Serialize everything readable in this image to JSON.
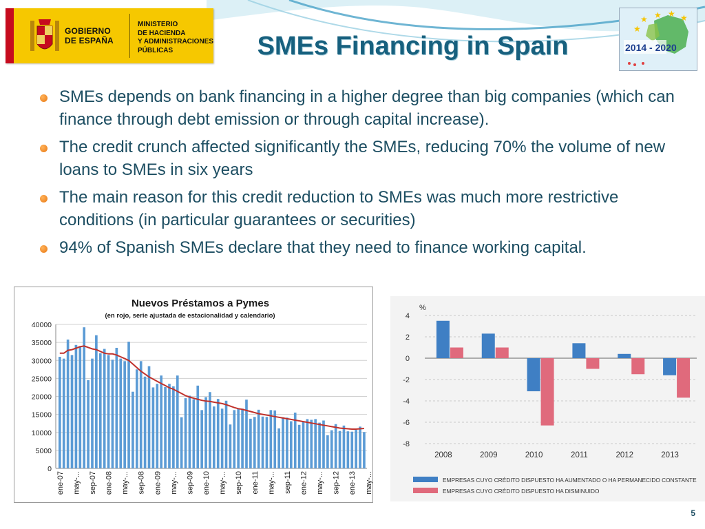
{
  "header": {
    "gov_line1": "GOBIERNO",
    "gov_line2": "DE ESPAÑA",
    "ministry_line1": "MINISTERIO",
    "ministry_line2": "DE HACIENDA",
    "ministry_line3": "Y ADMINISTRACIONES",
    "ministry_line4": "PÚBLICAS",
    "title": "SMEs Financing in Spain",
    "eu_logo_text": "2014 - 2020"
  },
  "bullets": [
    "SMEs depends on bank financing in a higher degree than big companies (which can finance through debt emission or through capital increase).",
    "The credit crunch affected significantly the SMEs, reducing 70% the volume of new loans to SMEs in six years",
    "The main reason for this credit reduction to SMEs was much more restrictive conditions (in particular guarantees or securities)",
    "94% of Spanish SMEs declare that they need to finance working capital."
  ],
  "footer": {
    "page_number": "5"
  },
  "colors": {
    "title": "#17607e",
    "text": "#1d4e62",
    "bullet": "#e87712",
    "bar_blue": "#5b9bd5",
    "line_red": "#c0312b",
    "bar2_blue": "#3f7fc4",
    "bar2_red": "#e06a7c"
  },
  "chart_data": [
    {
      "type": "bar",
      "title": "Nuevos Préstamos a Pymes",
      "subtitle": "(en rojo, serie ajustada de estacionalidad y calendario)",
      "ylim": [
        0,
        40000
      ],
      "yticks": [
        "40000",
        "35000",
        "30000",
        "25000",
        "20000",
        "15000",
        "10000",
        "5000",
        "0"
      ],
      "ytick_values": [
        40000,
        35000,
        30000,
        25000,
        20000,
        15000,
        10000,
        5000,
        0
      ],
      "xtick_labels": [
        "ene-07",
        "may-...",
        "sep-07",
        "ene-08",
        "may-...",
        "sep-08",
        "ene-09",
        "may-...",
        "sep-09",
        "ene-10",
        "may-...",
        "sep-10",
        "ene-11",
        "may-...",
        "sep-11",
        "ene-12",
        "may-...",
        "sep-12",
        "ene-13",
        "may-..."
      ],
      "grid": true,
      "values": [
        31000,
        30500,
        35800,
        31500,
        34300,
        34000,
        39200,
        24500,
        30500,
        37000,
        32000,
        33200,
        31500,
        30200,
        33500,
        30500,
        29800,
        35200,
        21300,
        27500,
        29800,
        25500,
        28400,
        22500,
        23500,
        25800,
        22600,
        23500,
        22800,
        25800,
        14200,
        19500,
        20200,
        19200,
        23000,
        16200,
        19800,
        21200,
        17200,
        19300,
        16600,
        18800,
        12200,
        16200,
        16600,
        16600,
        19100,
        13800,
        14300,
        16300,
        14400,
        14300,
        16200,
        16100,
        11100,
        14200,
        14100,
        13100,
        15500,
        12100,
        13000,
        13700,
        13500,
        13700,
        12700,
        13300,
        9200,
        10600,
        12300,
        10400,
        11900,
        10300,
        10200,
        10700,
        11600,
        10100
      ],
      "adjusted_series": [
        32000,
        32000,
        32800,
        33000,
        33400,
        33800,
        34000,
        33600,
        33200,
        33000,
        32500,
        32000,
        31800,
        31800,
        31500,
        31000,
        30500,
        30000,
        29000,
        28000,
        27000,
        26200,
        25400,
        24800,
        24200,
        23600,
        23000,
        22400,
        22000,
        21400,
        20800,
        20200,
        19800,
        19500,
        19200,
        18900,
        18700,
        18600,
        18400,
        18200,
        18000,
        17700,
        17300,
        16900,
        16600,
        16400,
        16100,
        15800,
        15500,
        15200,
        15000,
        14800,
        14600,
        14400,
        14200,
        14000,
        13800,
        13600,
        13400,
        13200,
        13000,
        12800,
        12600,
        12400,
        12200,
        12000,
        11800,
        11600,
        11400,
        11200,
        11100,
        11000,
        10900,
        10900,
        11000,
        11100
      ]
    },
    {
      "type": "bar",
      "unit_label": "%",
      "ylim": [
        -8,
        4
      ],
      "yticks": [
        "4",
        "2",
        "0",
        "-2",
        "-4",
        "-6",
        "-8"
      ],
      "ytick_values": [
        4,
        2,
        0,
        -2,
        -4,
        -6,
        -8
      ],
      "categories": [
        "2008",
        "2009",
        "2010",
        "2011",
        "2012",
        "2013"
      ],
      "grid": true,
      "legend_position": "bottom",
      "series": [
        {
          "name": "EMPRESAS CUYO CRÉDITO DISPUESTO HA AUMENTADO O HA PERMANECIDO CONSTANTE",
          "values": [
            3.5,
            2.3,
            -3.1,
            1.4,
            0.4,
            -1.6
          ]
        },
        {
          "name": "EMPRESAS CUYO CRÉDITO DISPUESTO HA DISMINUIDO",
          "values": [
            1.0,
            1.0,
            -6.3,
            -1.0,
            -1.5,
            -3.7
          ]
        }
      ]
    }
  ]
}
